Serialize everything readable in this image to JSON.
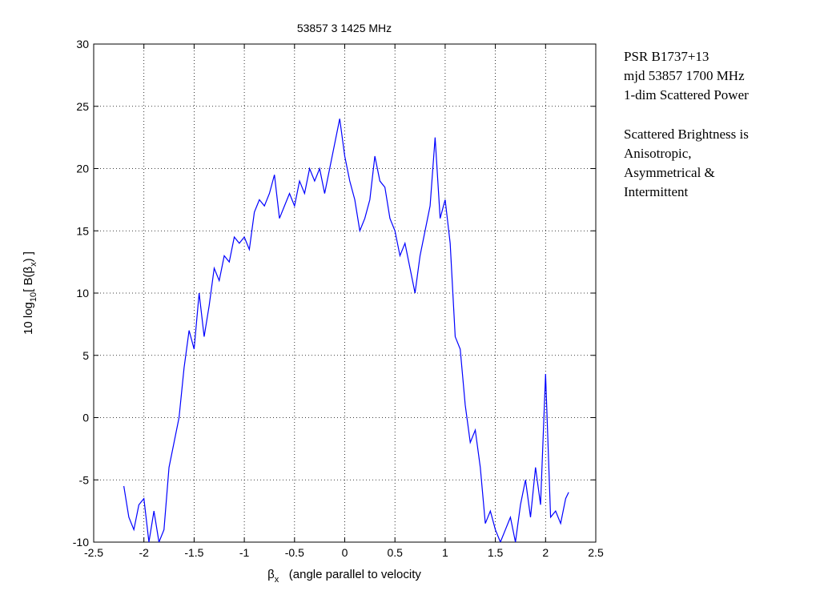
{
  "chart_data": {
    "type": "line",
    "title": "53857 3  1425 MHz",
    "xlabel": [
      "β",
      "x",
      "   (angle parallel to velocity"
    ],
    "ylabel": [
      "10 log",
      "10",
      "[ B(β",
      "x",
      ") ]"
    ],
    "annotation": [
      "PSR B1737+13",
      "mjd 53857 1700 MHz",
      "1-dim Scattered Power",
      "Scattered Brightness is",
      "Anisotropic,",
      "Asymmetrical  &",
      "Intermittent"
    ],
    "xlim": [
      -2.5,
      2.5
    ],
    "xticks": [
      -2.5,
      -2,
      -1.5,
      -1,
      -0.5,
      0,
      0.5,
      1,
      1.5,
      2,
      2.5
    ],
    "ylim": [
      -10,
      30
    ],
    "yticks": [
      -10,
      -5,
      0,
      5,
      10,
      15,
      20,
      25,
      30
    ],
    "grid": true,
    "series": [
      {
        "color": "#0000ff",
        "x": [
          -2.2,
          -2.15,
          -2.1,
          -2.05,
          -2.0,
          -1.95,
          -1.9,
          -1.85,
          -1.8,
          -1.75,
          -1.7,
          -1.65,
          -1.6,
          -1.55,
          -1.5,
          -1.45,
          -1.4,
          -1.35,
          -1.3,
          -1.25,
          -1.2,
          -1.15,
          -1.1,
          -1.05,
          -1.0,
          -0.95,
          -0.9,
          -0.85,
          -0.8,
          -0.75,
          -0.7,
          -0.65,
          -0.6,
          -0.55,
          -0.5,
          -0.45,
          -0.4,
          -0.35,
          -0.3,
          -0.25,
          -0.2,
          -0.15,
          -0.1,
          -0.05,
          0.0,
          0.05,
          0.1,
          0.15,
          0.2,
          0.25,
          0.3,
          0.35,
          0.4,
          0.45,
          0.5,
          0.55,
          0.6,
          0.65,
          0.7,
          0.75,
          0.8,
          0.85,
          0.9,
          0.95,
          1.0,
          1.05,
          1.1,
          1.15,
          1.2,
          1.25,
          1.3,
          1.35,
          1.4,
          1.45,
          1.5,
          1.55,
          1.6,
          1.65,
          1.7,
          1.75,
          1.8,
          1.85,
          1.9,
          1.95,
          2.0,
          2.05,
          2.1,
          2.15,
          2.2,
          2.23
        ],
        "values": [
          -5.5,
          -8,
          -9,
          -7,
          -6.5,
          -10,
          -7.5,
          -10,
          -9,
          -4,
          -2,
          0,
          4,
          7,
          5.5,
          10,
          6.5,
          9,
          12,
          11,
          13,
          12.5,
          14.5,
          14,
          14.5,
          13.5,
          16.5,
          17.5,
          17,
          18,
          19.5,
          16,
          17,
          18,
          17,
          19,
          18,
          20,
          19,
          20,
          18,
          20,
          22,
          24,
          21,
          19,
          17.5,
          15,
          16,
          17.5,
          21,
          19,
          18.5,
          16,
          15,
          13,
          14,
          12,
          10,
          13,
          15,
          17,
          22.5,
          16,
          17.5,
          14,
          6.5,
          5.5,
          1,
          -2,
          -1,
          -4,
          -8.5,
          -7.5,
          -9,
          -10,
          -9,
          -8,
          -10,
          -7,
          -5,
          -8,
          -4,
          -7,
          3.5,
          -8,
          -7.5,
          -8.5,
          -6.5,
          -6
        ]
      }
    ]
  }
}
